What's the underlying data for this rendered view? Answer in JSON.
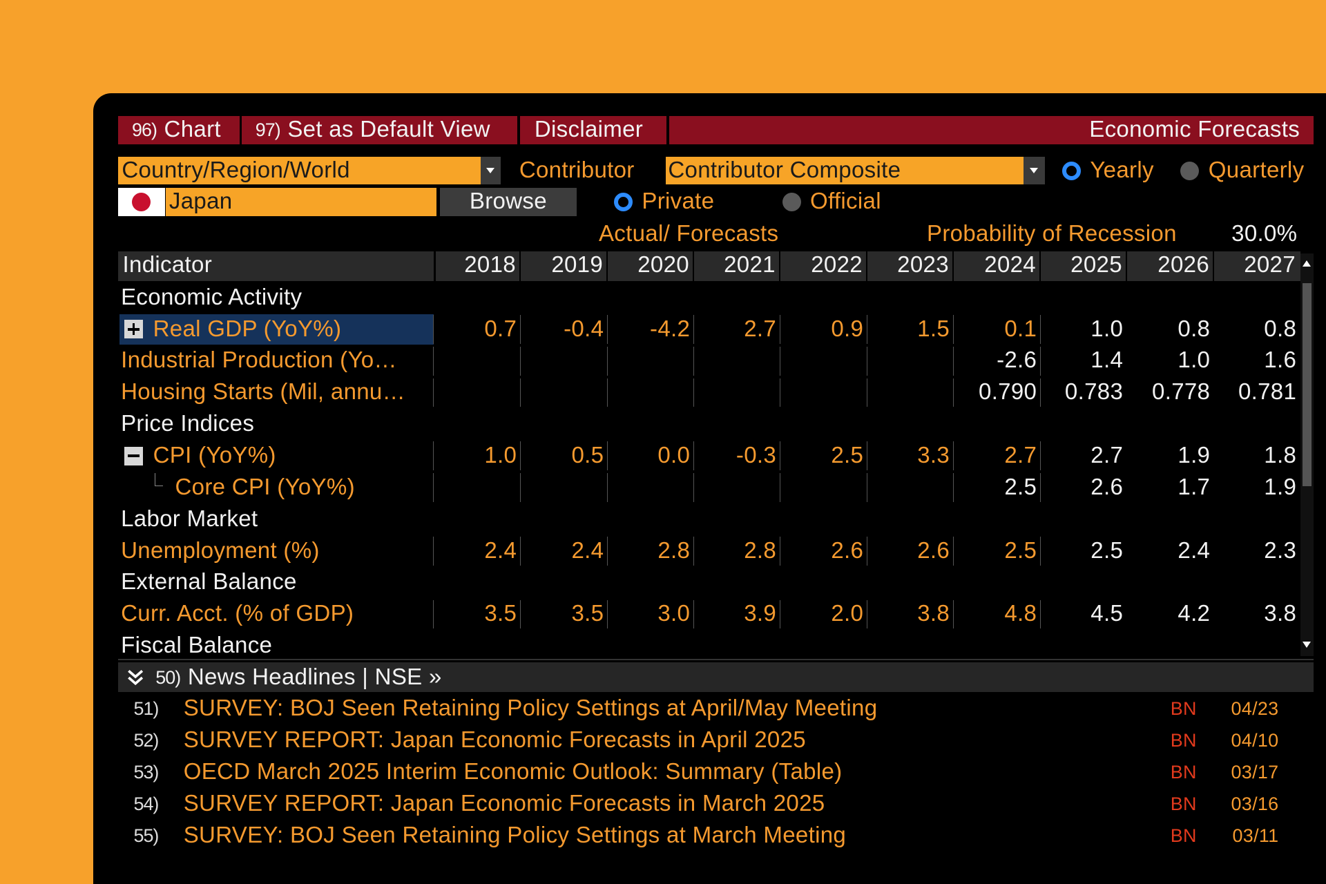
{
  "toolbar": {
    "buttons": [
      {
        "number": "96)",
        "label": "Chart"
      },
      {
        "number": "97)",
        "label": "Set as Default View"
      },
      {
        "label": "Disclaimer"
      }
    ],
    "title": "Economic Forecasts"
  },
  "controls": {
    "region_dropdown": "Country/Region/World",
    "contributor_label": "Contributor",
    "contributor_dropdown": "Contributor Composite",
    "period_options": [
      {
        "label": "Yearly",
        "selected": true
      },
      {
        "label": "Quarterly",
        "selected": false
      }
    ],
    "country": "Japan",
    "browse_button": "Browse",
    "source_options": [
      {
        "label": "Private",
        "selected": true
      },
      {
        "label": "Official",
        "selected": false
      }
    ]
  },
  "summary": {
    "actual_forecasts": "Actual/ Forecasts",
    "recession_label": "Probability of Recession",
    "recession_value": "30.0%"
  },
  "table": {
    "header": "Indicator",
    "years": [
      "2018",
      "2019",
      "2020",
      "2021",
      "2022",
      "2023",
      "2024",
      "2025",
      "2026",
      "2027"
    ],
    "rows": [
      {
        "label": "Economic Activity",
        "section": true
      },
      {
        "label": "Real GDP (YoY%)",
        "expander": "plus",
        "selected": true,
        "values": [
          "0.7",
          "-0.4",
          "-4.2",
          "2.7",
          "0.9",
          "1.5",
          "0.1",
          "1.0",
          "0.8",
          "0.8"
        ],
        "colors": [
          "#f59a2f",
          "#f59a2f",
          "#f59a2f",
          "#f59a2f",
          "#f59a2f",
          "#f59a2f",
          "#f59a2f",
          "#f2f2f2",
          "#f2f2f2",
          "#f2f2f2"
        ]
      },
      {
        "label": "Industrial Production (Yo…",
        "values": [
          null,
          null,
          null,
          null,
          null,
          null,
          "-2.6",
          "1.4",
          "1.0",
          "1.6"
        ],
        "colors": [
          null,
          null,
          null,
          null,
          null,
          null,
          "#f2f2f2",
          "#f2f2f2",
          "#f2f2f2",
          "#f2f2f2"
        ]
      },
      {
        "label": "Housing Starts (Mil, annu…",
        "values": [
          null,
          null,
          null,
          null,
          null,
          null,
          "0.790",
          "0.783",
          "0.778",
          "0.781"
        ],
        "colors": [
          null,
          null,
          null,
          null,
          null,
          null,
          "#f2f2f2",
          "#f2f2f2",
          "#f2f2f2",
          "#f2f2f2"
        ]
      },
      {
        "label": "Price Indices",
        "section": true
      },
      {
        "label": "CPI (YoY%)",
        "expander": "minus",
        "values": [
          "1.0",
          "0.5",
          "0.0",
          "-0.3",
          "2.5",
          "3.3",
          "2.7",
          "2.7",
          "1.9",
          "1.8"
        ],
        "colors": [
          "#f59a2f",
          "#f59a2f",
          "#f59a2f",
          "#f59a2f",
          "#f59a2f",
          "#f59a2f",
          "#f59a2f",
          "#f2f2f2",
          "#f2f2f2",
          "#f2f2f2"
        ]
      },
      {
        "label": "Core CPI (YoY%)",
        "child": true,
        "values": [
          null,
          null,
          null,
          null,
          null,
          null,
          "2.5",
          "2.6",
          "1.7",
          "1.9"
        ],
        "colors": [
          null,
          null,
          null,
          null,
          null,
          null,
          "#f2f2f2",
          "#f2f2f2",
          "#f2f2f2",
          "#f2f2f2"
        ]
      },
      {
        "label": "Labor Market",
        "section": true
      },
      {
        "label": "Unemployment (%)",
        "values": [
          "2.4",
          "2.4",
          "2.8",
          "2.8",
          "2.6",
          "2.6",
          "2.5",
          "2.5",
          "2.4",
          "2.3"
        ],
        "colors": [
          "#f59a2f",
          "#f59a2f",
          "#f59a2f",
          "#f59a2f",
          "#f59a2f",
          "#f59a2f",
          "#f59a2f",
          "#f2f2f2",
          "#f2f2f2",
          "#f2f2f2"
        ]
      },
      {
        "label": "External Balance",
        "section": true
      },
      {
        "label": "Curr. Acct. (% of GDP)",
        "values": [
          "3.5",
          "3.5",
          "3.0",
          "3.9",
          "2.0",
          "3.8",
          "4.8",
          "4.5",
          "4.2",
          "3.8"
        ],
        "colors": [
          "#f59a2f",
          "#f59a2f",
          "#f59a2f",
          "#f59a2f",
          "#f59a2f",
          "#f59a2f",
          "#f59a2f",
          "#f2f2f2",
          "#f2f2f2",
          "#f2f2f2"
        ]
      },
      {
        "label": "Fiscal Balance",
        "section": true
      }
    ]
  },
  "news": {
    "number": "50)",
    "title": "News Headlines | NSE »",
    "items": [
      {
        "number": "51)",
        "headline": "SURVEY: BOJ Seen Retaining Policy Settings at April/May Meeting",
        "source": "BN",
        "date": "04/23"
      },
      {
        "number": "52)",
        "headline": "SURVEY REPORT: Japan Economic Forecasts in April 2025",
        "source": "BN",
        "date": "04/10"
      },
      {
        "number": "53)",
        "headline": "OECD March 2025 Interim Economic Outlook: Summary (Table)",
        "source": "BN",
        "date": "03/17"
      },
      {
        "number": "54)",
        "headline": "SURVEY REPORT: Japan Economic Forecasts in March 2025",
        "source": "BN",
        "date": "03/16"
      },
      {
        "number": "55)",
        "headline": "SURVEY: BOJ Seen Retaining Policy Settings at March Meeting",
        "source": "BN",
        "date": "03/11"
      }
    ]
  }
}
